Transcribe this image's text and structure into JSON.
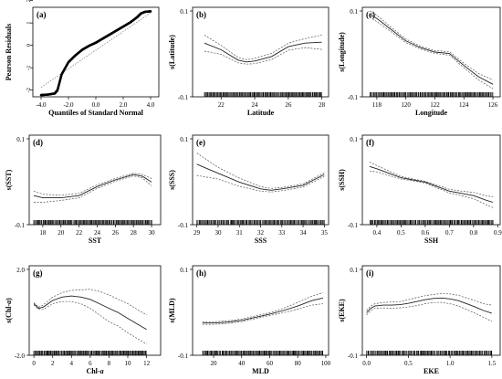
{
  "figure": {
    "panels": [
      {
        "key": "a",
        "letter": "(a)",
        "label_style": "normal",
        "ylabel": "Pearson Residuals",
        "ylabel_base": "",
        "ylabel_it": "",
        "ylabel_tail": "",
        "xlabel": "Quantiles of Standard Normal",
        "xlabel_base": "",
        "xlabel_it": "",
        "xticks": [
          "-4.0",
          "-2.0",
          "0.0",
          "2.0",
          "4.0"
        ],
        "yticks": [
          "2",
          "1",
          "0",
          "-1",
          "-2"
        ]
      },
      {
        "key": "b",
        "letter": "(b)",
        "label_style": "normal",
        "ylabel": "s(Latitude)",
        "ylabel_base": "",
        "ylabel_it": "",
        "ylabel_tail": "",
        "xlabel": "Latitude",
        "xlabel_base": "",
        "xlabel_it": "",
        "xticks": [
          "22",
          "24",
          "26",
          "28"
        ],
        "yticks": [
          "0.1",
          "-0.1"
        ]
      },
      {
        "key": "c",
        "letter": "(c)",
        "label_style": "normal",
        "ylabel": "s(Longitude)",
        "ylabel_base": "",
        "ylabel_it": "",
        "ylabel_tail": "",
        "xlabel": "Longitude",
        "xlabel_base": "",
        "xlabel_it": "",
        "xticks": [
          "118",
          "120",
          "122",
          "124",
          "126"
        ],
        "yticks": [
          "0.1",
          "-0.1"
        ]
      },
      {
        "key": "d",
        "letter": "(d)",
        "label_style": "normal",
        "ylabel": "s(SST)",
        "ylabel_base": "",
        "ylabel_it": "",
        "ylabel_tail": "",
        "xlabel": "SST",
        "xlabel_base": "",
        "xlabel_it": "",
        "xticks": [
          "18",
          "20",
          "22",
          "24",
          "26",
          "28",
          "30"
        ],
        "yticks": [
          "0.1",
          "-0.1"
        ]
      },
      {
        "key": "e",
        "letter": "(e)",
        "label_style": "normal",
        "ylabel": "s(SSS)",
        "ylabel_base": "",
        "ylabel_it": "",
        "ylabel_tail": "",
        "xlabel": "SSS",
        "xlabel_base": "",
        "xlabel_it": "",
        "xticks": [
          "29",
          "30",
          "31",
          "32",
          "33",
          "34",
          "35"
        ],
        "yticks": [
          "0.1",
          "-0.1"
        ]
      },
      {
        "key": "f",
        "letter": "(f)",
        "label_style": "normal",
        "ylabel": "s(SSH)",
        "ylabel_base": "",
        "ylabel_it": "",
        "ylabel_tail": "",
        "xlabel": "SSH",
        "xlabel_base": "",
        "xlabel_it": "",
        "xticks": [
          "0.4",
          "0.5",
          "0.6",
          "0.7",
          "0.8",
          "0.9"
        ],
        "yticks": [
          "0.1",
          "-0.1"
        ]
      },
      {
        "key": "g",
        "letter": "(g)",
        "label_style": "split",
        "ylabel": "",
        "ylabel_base": "s(Chl-",
        "ylabel_it": "a",
        "ylabel_tail": ")",
        "xlabel": "",
        "xlabel_base": "Chl-",
        "xlabel_it": "a",
        "xticks": [
          "0",
          "2",
          "4",
          "6",
          "8",
          "10",
          "12"
        ],
        "yticks": [
          "2.0",
          "-2.0"
        ]
      },
      {
        "key": "h",
        "letter": "(h)",
        "label_style": "normal",
        "ylabel": "s(MLD)",
        "ylabel_base": "",
        "ylabel_it": "",
        "ylabel_tail": "",
        "xlabel": "MLD",
        "xlabel_base": "",
        "xlabel_it": "",
        "xticks": [
          "20",
          "40",
          "60",
          "80",
          "100"
        ],
        "yticks": [
          "0.1",
          "-0.1"
        ]
      },
      {
        "key": "i",
        "letter": "(i)",
        "label_style": "normal",
        "ylabel": "s(EKE)",
        "ylabel_base": "",
        "ylabel_it": "",
        "ylabel_tail": "",
        "xlabel": "EKE",
        "xlabel_base": "",
        "xlabel_it": "",
        "xticks": [
          "0.0",
          "0.5",
          "1.0",
          "1.5"
        ],
        "yticks": [
          "0.1",
          "-0.1"
        ]
      }
    ]
  },
  "chart_data": [
    {
      "type": "scatter",
      "panel": "(a)",
      "title": "",
      "xlabel": "Quantiles of Standard Normal",
      "ylabel": "Pearson Residuals",
      "xlim": [
        -4.6,
        4.6
      ],
      "ylim": [
        -2.3,
        1.7
      ],
      "grid": false,
      "x": [
        -4.0,
        -3.5,
        -3.0,
        -2.8,
        -2.5,
        -2.0,
        -1.5,
        -1.0,
        -0.5,
        0.0,
        0.5,
        1.0,
        1.5,
        2.0,
        2.5,
        3.0,
        3.3,
        3.6,
        4.0
      ],
      "y": [
        -2.22,
        -2.2,
        -2.15,
        -2.0,
        -1.3,
        -0.75,
        -0.45,
        -0.2,
        -0.02,
        0.12,
        0.3,
        0.48,
        0.66,
        0.84,
        1.02,
        1.25,
        1.43,
        1.5,
        1.52
      ],
      "reference_line": {
        "x": [
          -4.0,
          4.0
        ],
        "y": [
          -1.88,
          1.45
        ]
      }
    },
    {
      "type": "line",
      "panel": "(b)",
      "title": "",
      "xlabel": "Latitude",
      "ylabel": "s(Latitude)",
      "xlim": [
        20.3,
        28.4
      ],
      "ylim": [
        -0.1,
        0.1
      ],
      "grid": false,
      "x": [
        21,
        22,
        23,
        23.5,
        24,
        25,
        26,
        27,
        28
      ],
      "series": [
        {
          "role": "fit",
          "values": [
            0.02,
            0.005,
            -0.018,
            -0.022,
            -0.02,
            -0.01,
            0.012,
            0.02,
            0.022
          ]
        },
        {
          "role": "upper",
          "values": [
            0.038,
            0.015,
            -0.012,
            -0.017,
            -0.014,
            -0.003,
            0.02,
            0.03,
            0.038
          ]
        },
        {
          "role": "lower",
          "values": [
            0.002,
            -0.005,
            -0.024,
            -0.027,
            -0.026,
            -0.017,
            0.004,
            0.01,
            0.006
          ]
        }
      ]
    },
    {
      "type": "line",
      "panel": "(c)",
      "title": "",
      "xlabel": "Longitude",
      "ylabel": "s(Longitude)",
      "xlim": [
        117,
        126.5
      ],
      "ylim": [
        -0.1,
        0.1
      ],
      "grid": false,
      "x": [
        117.5,
        118,
        119,
        120,
        121,
        122,
        123,
        124,
        125,
        126
      ],
      "series": [
        {
          "role": "fit",
          "values": [
            0.085,
            0.075,
            0.05,
            0.025,
            0.01,
            0.0,
            -0.003,
            -0.03,
            -0.055,
            -0.072
          ]
        },
        {
          "role": "upper",
          "values": [
            0.092,
            0.082,
            0.055,
            0.029,
            0.013,
            0.003,
            0.001,
            -0.025,
            -0.048,
            -0.062
          ]
        },
        {
          "role": "lower",
          "values": [
            0.078,
            0.068,
            0.045,
            0.021,
            0.007,
            -0.003,
            -0.007,
            -0.035,
            -0.062,
            -0.082
          ]
        }
      ]
    },
    {
      "type": "line",
      "panel": "(d)",
      "title": "",
      "xlabel": "SST",
      "ylabel": "s(SST)",
      "xlim": [
        16.5,
        31
      ],
      "ylim": [
        -0.1,
        0.1
      ],
      "grid": false,
      "x": [
        17,
        18,
        20,
        22,
        24,
        26,
        28,
        29,
        30
      ],
      "series": [
        {
          "role": "fit",
          "values": [
            -0.035,
            -0.04,
            -0.04,
            -0.035,
            -0.015,
            0.0,
            0.012,
            0.008,
            -0.005
          ]
        },
        {
          "role": "upper",
          "values": [
            -0.025,
            -0.032,
            -0.034,
            -0.03,
            -0.011,
            0.003,
            0.015,
            0.012,
            0.003
          ]
        },
        {
          "role": "lower",
          "values": [
            -0.05,
            -0.05,
            -0.046,
            -0.04,
            -0.019,
            -0.003,
            0.009,
            0.004,
            -0.013
          ]
        }
      ]
    },
    {
      "type": "line",
      "panel": "(e)",
      "title": "",
      "xlabel": "SSS",
      "ylabel": "s(SSS)",
      "xlim": [
        28.8,
        35.2
      ],
      "ylim": [
        -0.1,
        0.1
      ],
      "grid": false,
      "x": [
        29,
        29.5,
        30,
        31,
        32,
        32.5,
        33,
        34,
        35
      ],
      "series": [
        {
          "role": "fit",
          "values": [
            0.035,
            0.025,
            0.015,
            -0.005,
            -0.02,
            -0.023,
            -0.02,
            -0.012,
            0.012
          ]
        },
        {
          "role": "upper",
          "values": [
            0.06,
            0.044,
            0.028,
            0.004,
            -0.015,
            -0.019,
            -0.017,
            -0.009,
            0.016
          ]
        },
        {
          "role": "lower",
          "values": [
            0.01,
            0.006,
            0.002,
            -0.014,
            -0.025,
            -0.027,
            -0.024,
            -0.016,
            0.008
          ]
        }
      ]
    },
    {
      "type": "line",
      "panel": "(f)",
      "title": "",
      "xlabel": "SSH",
      "ylabel": "s(SSH)",
      "xlim": [
        0.34,
        0.91
      ],
      "ylim": [
        -0.1,
        0.1
      ],
      "grid": false,
      "x": [
        0.37,
        0.4,
        0.45,
        0.5,
        0.55,
        0.6,
        0.65,
        0.7,
        0.75,
        0.8,
        0.85,
        0.88
      ],
      "series": [
        {
          "role": "fit",
          "values": [
            0.03,
            0.025,
            0.015,
            0.005,
            0.0,
            -0.005,
            -0.015,
            -0.025,
            -0.03,
            -0.035,
            -0.045,
            -0.05
          ]
        },
        {
          "role": "upper",
          "values": [
            0.04,
            0.032,
            0.02,
            0.008,
            0.002,
            -0.003,
            -0.012,
            -0.021,
            -0.025,
            -0.028,
            -0.035,
            -0.038
          ]
        },
        {
          "role": "lower",
          "values": [
            0.02,
            0.018,
            0.01,
            0.002,
            -0.002,
            -0.007,
            -0.018,
            -0.029,
            -0.035,
            -0.042,
            -0.055,
            -0.062
          ]
        }
      ]
    },
    {
      "type": "line",
      "panel": "(g)",
      "title": "",
      "xlabel": "Chl-a",
      "ylabel": "s(Chl-a)",
      "xlim": [
        -0.5,
        13.5
      ],
      "ylim": [
        -2.0,
        2.0
      ],
      "grid": false,
      "x": [
        0,
        0.5,
        1,
        2,
        3,
        4,
        5,
        6,
        7,
        8,
        9,
        10,
        11,
        12
      ],
      "series": [
        {
          "role": "fit",
          "values": [
            0.3,
            0.1,
            0.15,
            0.45,
            0.6,
            0.65,
            0.6,
            0.5,
            0.3,
            0.1,
            -0.1,
            -0.35,
            -0.6,
            -0.85
          ]
        },
        {
          "role": "upper",
          "values": [
            0.35,
            0.15,
            0.25,
            0.6,
            0.8,
            0.9,
            0.92,
            0.95,
            0.85,
            0.7,
            0.5,
            0.3,
            0.05,
            -0.2
          ]
        },
        {
          "role": "lower",
          "values": [
            0.25,
            0.05,
            0.05,
            0.3,
            0.4,
            0.4,
            0.3,
            0.1,
            -0.2,
            -0.5,
            -0.7,
            -1.0,
            -1.25,
            -1.5
          ]
        }
      ]
    },
    {
      "type": "line",
      "panel": "(h)",
      "title": "",
      "xlabel": "MLD",
      "ylabel": "s(MLD)",
      "xlim": [
        5,
        102
      ],
      "ylim": [
        -0.1,
        0.1
      ],
      "grid": false,
      "x": [
        12,
        20,
        30,
        40,
        50,
        60,
        70,
        80,
        90,
        98
      ],
      "series": [
        {
          "role": "fit",
          "values": [
            -0.028,
            -0.028,
            -0.026,
            -0.022,
            -0.015,
            -0.008,
            0.0,
            0.01,
            0.022,
            0.028
          ]
        },
        {
          "role": "upper",
          "values": [
            -0.025,
            -0.025,
            -0.023,
            -0.019,
            -0.012,
            -0.005,
            0.005,
            0.018,
            0.032,
            0.04
          ]
        },
        {
          "role": "lower",
          "values": [
            -0.031,
            -0.031,
            -0.029,
            -0.025,
            -0.018,
            -0.011,
            -0.005,
            0.003,
            0.012,
            0.015
          ]
        }
      ]
    },
    {
      "type": "line",
      "panel": "(i)",
      "title": "",
      "xlabel": "EKE",
      "ylabel": "s(EKE)",
      "xlim": [
        -0.05,
        1.6
      ],
      "ylim": [
        -0.1,
        0.1
      ],
      "grid": false,
      "x": [
        0,
        0.05,
        0.1,
        0.2,
        0.3,
        0.4,
        0.5,
        0.6,
        0.7,
        0.8,
        0.9,
        1.0,
        1.1,
        1.2,
        1.3,
        1.4,
        1.5
      ],
      "series": [
        {
          "role": "fit",
          "values": [
            -0.005,
            0.005,
            0.01,
            0.012,
            0.012,
            0.013,
            0.016,
            0.02,
            0.024,
            0.027,
            0.028,
            0.026,
            0.022,
            0.015,
            0.008,
            0.0,
            -0.006
          ]
        },
        {
          "role": "upper",
          "values": [
            0.0,
            0.01,
            0.015,
            0.018,
            0.019,
            0.02,
            0.024,
            0.029,
            0.033,
            0.036,
            0.038,
            0.037,
            0.034,
            0.028,
            0.022,
            0.015,
            0.012
          ]
        },
        {
          "role": "lower",
          "values": [
            -0.01,
            0.0,
            0.005,
            0.006,
            0.005,
            0.006,
            0.008,
            0.011,
            0.015,
            0.018,
            0.018,
            0.015,
            0.01,
            0.002,
            -0.006,
            -0.015,
            -0.024
          ]
        }
      ]
    }
  ]
}
